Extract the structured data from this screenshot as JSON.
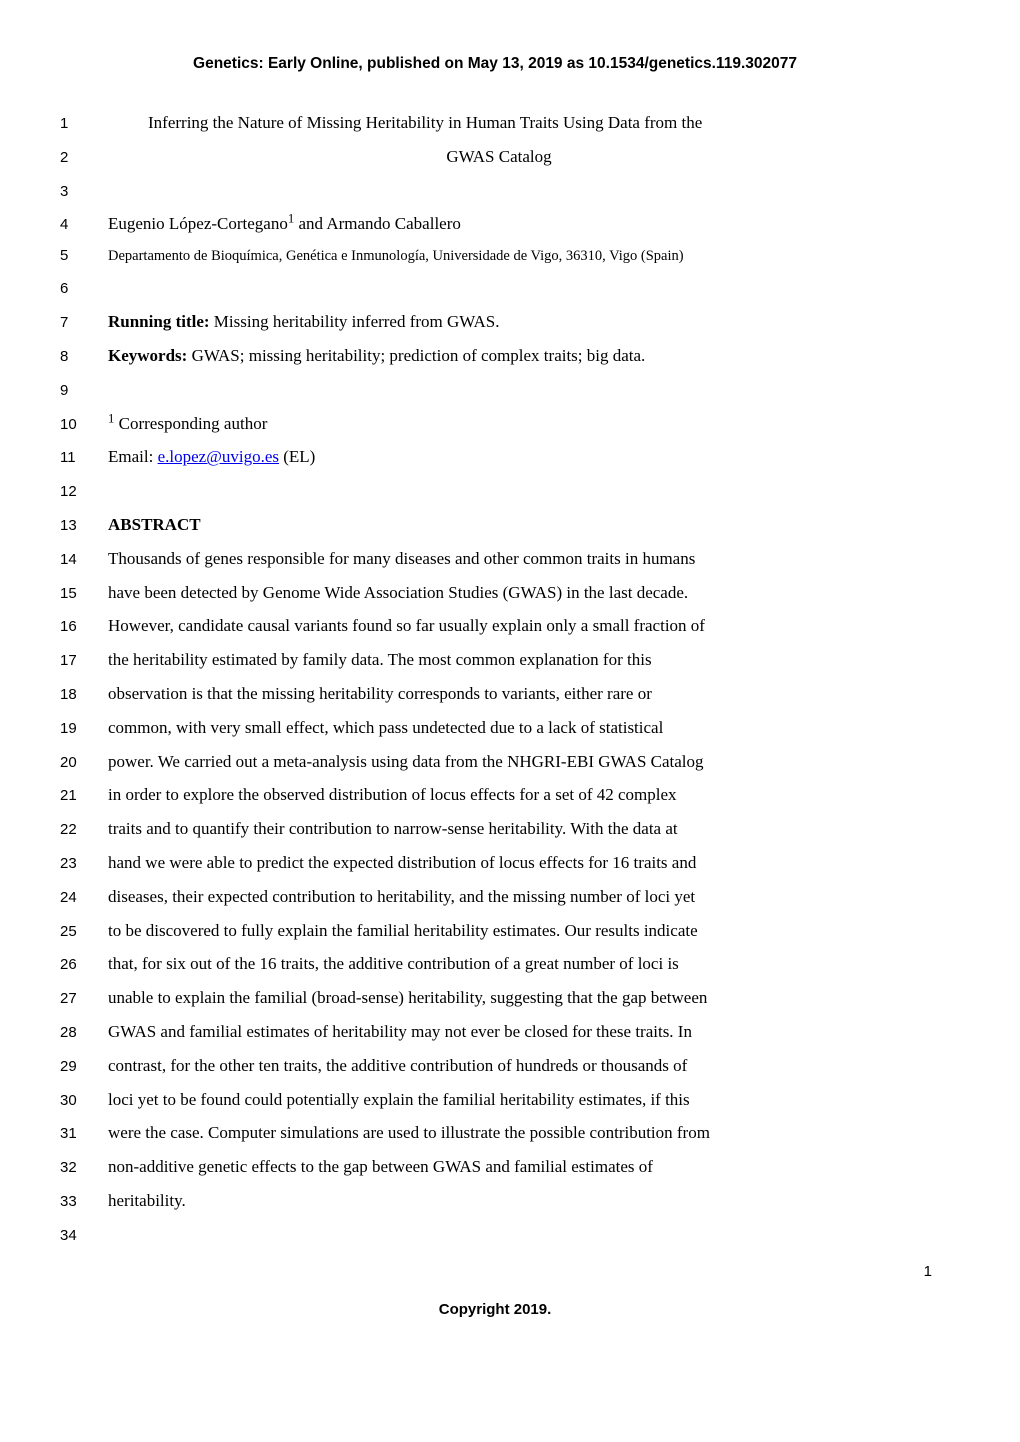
{
  "running_header": "Genetics: Early Online, published on May 13, 2019 as 10.1534/genetics.119.302077",
  "lines": {
    "l1": "Inferring the Nature of Missing Heritability in Human Traits Using Data from the",
    "l2": "GWAS Catalog",
    "l4a": "Eugenio López-Cortegano",
    "l4b": " and Armando Caballero",
    "l5": "Departamento de Bioquímica, Genética e Inmunología, Universidade de Vigo, 36310, Vigo (Spain)",
    "l7_label": "Running title:",
    "l7_text": " Missing heritability inferred from GWAS.",
    "l8_label": "Keywords:",
    "l8_text": " GWAS; missing heritability; prediction of complex traits; big data.",
    "l10": " Corresponding author",
    "l11_pre": "Email: ",
    "l11_email": "e.lopez@uvigo.es",
    "l11_post": " (EL)",
    "l13": "ABSTRACT",
    "l14": "Thousands of genes responsible for many diseases and other common traits in humans",
    "l15": "have been detected by Genome Wide Association Studies (GWAS) in the last decade.",
    "l16": "However, candidate causal variants found so far usually explain only a small fraction of",
    "l17": "the heritability estimated by family data. The most common explanation for this",
    "l18": "observation is that the missing heritability corresponds to variants, either rare or",
    "l19": "common, with very small effect, which pass undetected due to a lack of statistical",
    "l20": "power. We carried out a meta-analysis using data from the NHGRI-EBI GWAS Catalog",
    "l21": "in order to explore the observed distribution of locus effects for a set of 42 complex",
    "l22": "traits and to quantify their contribution to narrow-sense heritability. With the data at",
    "l23": "hand we were able to predict the expected distribution of locus effects for 16 traits and",
    "l24": "diseases, their expected contribution to heritability, and the missing number of loci yet",
    "l25": "to be discovered to fully explain the familial heritability estimates. Our results indicate",
    "l26": "that, for six out of the 16 traits, the additive contribution of a great number of loci is",
    "l27": "unable to explain the familial (broad-sense) heritability, suggesting that the gap between",
    "l28": "GWAS and familial estimates of heritability may not ever be closed for these traits. In",
    "l29": "contrast, for the other ten traits, the additive contribution of hundreds or thousands of",
    "l30": "loci yet to be found could potentially explain the familial heritability estimates, if this",
    "l31": "were the case. Computer simulations are used to illustrate the possible contribution from",
    "l32": "non-additive genetic effects to the gap between GWAS and familial estimates of",
    "l33": "heritability."
  },
  "line_numbers": [
    "1",
    "2",
    "3",
    "4",
    "5",
    "6",
    "7",
    "8",
    "9",
    "10",
    "11",
    "12",
    "13",
    "14",
    "15",
    "16",
    "17",
    "18",
    "19",
    "20",
    "21",
    "22",
    "23",
    "24",
    "25",
    "26",
    "27",
    "28",
    "29",
    "30",
    "31",
    "32",
    "33",
    "34"
  ],
  "page_number": "1",
  "copyright": "Copyright 2019."
}
